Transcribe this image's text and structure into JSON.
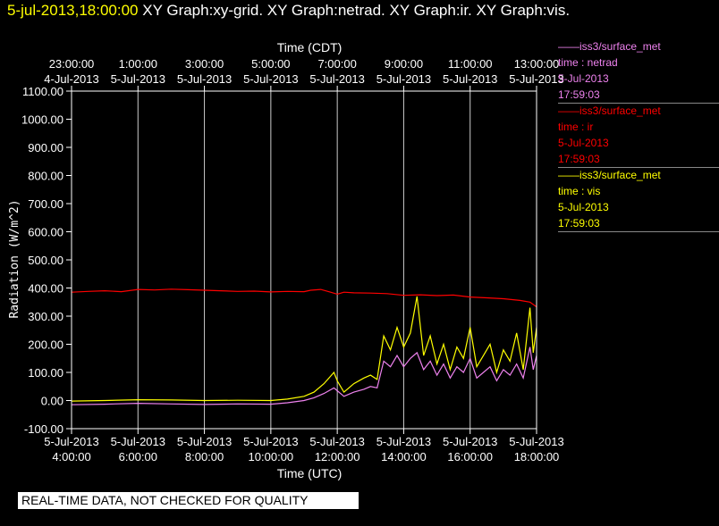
{
  "header": {
    "timestamp": "5-jul-2013,18:00:00",
    "graphs": "XY Graph:xy-grid.  XY Graph:netrad.  XY Graph:ir.  XY Graph:vis."
  },
  "legend": [
    {
      "source": "iss3/surface_met",
      "variable": "time : netrad",
      "date": "5-Jul-2013",
      "time": "17:59:03",
      "color": "#ee82ee"
    },
    {
      "source": "iss3/surface_met",
      "variable": "time : ir",
      "date": "5-Jul-2013",
      "time": "17:59:03",
      "color": "#ff0000"
    },
    {
      "source": "iss3/surface_met",
      "variable": "time : vis",
      "date": "5-Jul-2013",
      "time": "17:59:03",
      "color": "#ffff00"
    }
  ],
  "footer": {
    "note": "REAL-TIME DATA, NOT CHECKED FOR QUALITY"
  },
  "chart_data": {
    "type": "line",
    "xlabel": "Time (UTC)",
    "x2label": "Time (CDT)",
    "ylabel": "Radiation (W/m^2)",
    "xlim": [
      4,
      18
    ],
    "ylim": [
      -100,
      1100
    ],
    "grid": true,
    "yticks": [
      "-100.00",
      "0.00",
      "100.00",
      "200.00",
      "300.00",
      "400.00",
      "500.00",
      "600.00",
      "700.00",
      "800.00",
      "900.00",
      "1000.00",
      "1100.00"
    ],
    "xticks_bottom": [
      {
        "date": "5-Jul-2013",
        "time": "4:00:00"
      },
      {
        "date": "5-Jul-2013",
        "time": "6:00:00"
      },
      {
        "date": "5-Jul-2013",
        "time": "8:00:00"
      },
      {
        "date": "5-Jul-2013",
        "time": "10:00:00"
      },
      {
        "date": "5-Jul-2013",
        "time": "12:00:00"
      },
      {
        "date": "5-Jul-2013",
        "time": "14:00:00"
      },
      {
        "date": "5-Jul-2013",
        "time": "16:00:00"
      },
      {
        "date": "5-Jul-2013",
        "time": "18:00:00"
      }
    ],
    "xticks_top": [
      {
        "time": "23:00:00",
        "date": "4-Jul-2013"
      },
      {
        "time": "1:00:00",
        "date": "5-Jul-2013"
      },
      {
        "time": "3:00:00",
        "date": "5-Jul-2013"
      },
      {
        "time": "5:00:00",
        "date": "5-Jul-2013"
      },
      {
        "time": "7:00:00",
        "date": "5-Jul-2013"
      },
      {
        "time": "9:00:00",
        "date": "5-Jul-2013"
      },
      {
        "time": "11:00:00",
        "date": "5-Jul-2013"
      },
      {
        "time": "13:00:00",
        "date": "5-Jul-2013"
      }
    ],
    "series": [
      {
        "name": "time : ir",
        "color": "#ff0000",
        "x": [
          4,
          4.5,
          5,
          5.5,
          6,
          6.5,
          7,
          7.5,
          8,
          8.5,
          9,
          9.5,
          10,
          10.5,
          11,
          11.2,
          11.5,
          11.8,
          12,
          12.2,
          12.5,
          13,
          13.5,
          14,
          14.5,
          15,
          15.5,
          16,
          16.5,
          17,
          17.5,
          17.8,
          18
        ],
        "y": [
          385,
          388,
          390,
          387,
          395,
          393,
          396,
          394,
          392,
          390,
          388,
          389,
          386,
          388,
          387,
          392,
          395,
          385,
          378,
          385,
          383,
          382,
          380,
          374,
          376,
          373,
          375,
          368,
          365,
          362,
          356,
          350,
          333
        ]
      },
      {
        "name": "time : netrad",
        "color": "#ee82ee",
        "x": [
          4,
          5,
          6,
          7,
          8,
          9,
          10,
          10.5,
          11,
          11.3,
          11.6,
          11.9,
          12,
          12.2,
          12.5,
          12.8,
          13,
          13.2,
          13.4,
          13.6,
          13.8,
          14,
          14.2,
          14.4,
          14.6,
          14.8,
          15,
          15.2,
          15.4,
          15.6,
          15.8,
          16,
          16.2,
          16.4,
          16.6,
          16.8,
          17,
          17.2,
          17.4,
          17.6,
          17.8,
          17.9,
          18
        ],
        "y": [
          -15,
          -13,
          -10,
          -12,
          -14,
          -12,
          -13,
          -8,
          0,
          10,
          25,
          45,
          35,
          15,
          30,
          40,
          50,
          45,
          140,
          120,
          160,
          120,
          150,
          170,
          110,
          140,
          90,
          130,
          80,
          120,
          100,
          150,
          80,
          100,
          120,
          70,
          110,
          90,
          130,
          80,
          190,
          110,
          160
        ]
      },
      {
        "name": "time : vis",
        "color": "#ffff00",
        "x": [
          4,
          5,
          6,
          7,
          8,
          9,
          10,
          10.5,
          11,
          11.3,
          11.6,
          11.9,
          12,
          12.2,
          12.5,
          12.8,
          13,
          13.2,
          13.4,
          13.6,
          13.8,
          14,
          14.2,
          14.4,
          14.6,
          14.8,
          15,
          15.2,
          15.4,
          15.6,
          15.8,
          16,
          16.2,
          16.4,
          16.6,
          16.8,
          17,
          17.2,
          17.4,
          17.6,
          17.8,
          17.9,
          18
        ],
        "y": [
          -2,
          0,
          3,
          2,
          0,
          1,
          0,
          5,
          15,
          30,
          60,
          100,
          70,
          30,
          60,
          80,
          90,
          75,
          230,
          180,
          260,
          190,
          240,
          370,
          160,
          230,
          130,
          200,
          110,
          190,
          150,
          260,
          120,
          160,
          200,
          100,
          180,
          140,
          240,
          110,
          330,
          170,
          260
        ]
      }
    ]
  }
}
